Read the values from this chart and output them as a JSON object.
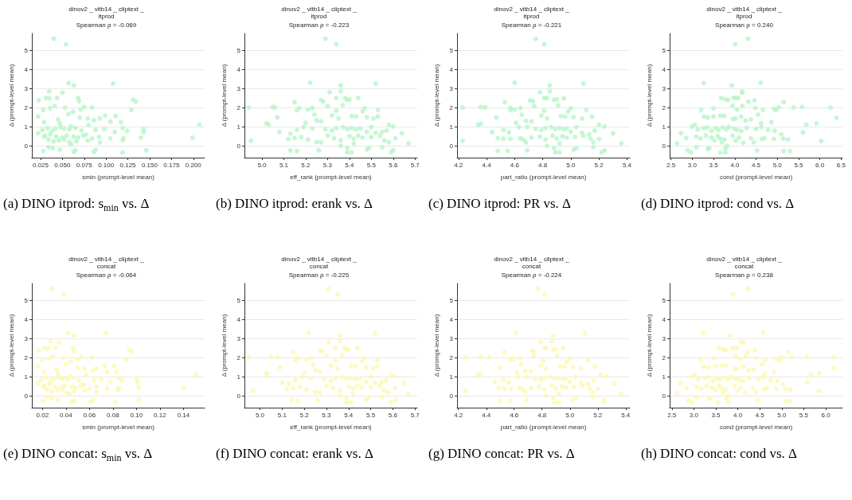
{
  "chart_data": [
    {
      "type": "scatter",
      "title": "dinov2 _ vitb14 _ cliptext _\nitprod",
      "subtitle": "Spearman ρ = -0.069",
      "xlabel": "smin (prompt-level mean)",
      "ylabel": "Δ (prompt-level mean)",
      "annotations": [
        "(a) DINO itprod: s$_{min}$ vs. Δ"
      ],
      "color": "#b8f5c8",
      "marker": "circle",
      "grid": "y",
      "xlim": [
        0.015,
        0.213
      ],
      "xticks": [
        0.025,
        {
          "value": 0.05,
          "label": "0.050"
        },
        0.075,
        {
          "value": 0.1,
          "label": "0.100"
        },
        0.125,
        {
          "value": 0.15,
          "label": "0.150"
        },
        0.175,
        {
          "value": 0.2,
          "label": "0.200"
        }
      ],
      "ylim": [
        -0.6,
        5.9
      ],
      "yticks": [
        0,
        1,
        2,
        3,
        4,
        5
      ],
      "x": [
        0.04,
        0.054,
        0.057,
        0.063,
        0.108,
        0.035,
        0.031,
        0.035,
        0.044,
        0.05,
        0.023,
        0.068,
        0.069,
        0.131,
        0.134,
        0.129,
        0.028,
        0.036,
        0.041,
        0.053,
        0.075,
        0.084,
        0.071,
        0.022,
        0.045,
        0.057,
        0.062,
        0.07,
        0.079,
        0.099,
        0.111,
        0.105,
        0.117,
        0.093,
        0.029,
        0.047,
        0.06,
        0.08,
        0.086,
        0.119,
        0.143,
        0.143,
        0.207,
        0.199,
        0.14,
        0.124,
        0.11,
        0.098,
        0.088,
        0.027,
        0.033,
        0.038,
        0.042,
        0.048,
        0.052,
        0.058,
        0.065,
        0.072,
        0.077,
        0.03,
        0.036,
        0.043,
        0.05,
        0.055,
        0.063,
        0.068,
        0.074,
        0.084,
        0.092,
        0.105,
        0.12,
        0.119,
        0.022,
        0.029,
        0.034,
        0.04,
        0.046,
        0.052,
        0.058,
        0.066,
        0.079,
        0.093,
        0.06,
        0.034,
        0.039,
        0.028,
        0.047,
        0.063,
        0.065,
        0.086,
        0.088,
        0.119,
        0.146
      ],
      "values": [
        5.62,
        5.33,
        3.3,
        3.18,
        3.28,
        2.87,
        2.52,
        2.5,
        2.52,
        2.8,
        2.4,
        2.52,
        2.35,
        2.43,
        2.33,
        1.9,
        1.88,
        1.98,
        2.1,
        2.02,
        2.05,
        2.03,
        1.92,
        1.55,
        1.4,
        1.68,
        1.8,
        1.5,
        1.45,
        1.6,
        1.58,
        1.28,
        1.25,
        1.45,
        1.25,
        1.2,
        1.05,
        1.1,
        1.35,
        0.95,
        0.9,
        0.73,
        1.13,
        0.45,
        0.45,
        0.8,
        0.75,
        0.88,
        0.85,
        0.85,
        0.95,
        0.8,
        0.9,
        1.0,
        0.92,
        0.88,
        0.95,
        0.82,
        0.6,
        0.55,
        0.62,
        0.5,
        0.45,
        0.55,
        0.5,
        0.45,
        0.55,
        0.4,
        0.48,
        0.4,
        0.42,
        0.32,
        0.68,
        0.5,
        0.35,
        0.25,
        0.3,
        0.35,
        0.2,
        0.25,
        0.3,
        0.2,
        0.1,
        -0.05,
        -0.1,
        -0.25,
        -0.18,
        -0.3,
        -0.22,
        -0.3,
        -0.2,
        -0.33,
        -0.22
      ]
    },
    {
      "type": "scatter",
      "title": "dinov2 _ vitb14 _ cliptext _\nitprod",
      "subtitle": "Spearman ρ = -0.223",
      "xlabel": "eff_rank (prompt-level mean)",
      "ylabel": "Δ (prompt-level mean)",
      "annotations": [
        "(b) DINO itprod: erank vs. Δ"
      ],
      "color": "#b8f5c8",
      "marker": "circle",
      "grid": "y",
      "xlim": [
        4.92,
        5.71
      ],
      "xticks": [
        {
          "value": 5,
          "label": "5.0"
        },
        5.1,
        5.2,
        5.3,
        5.4,
        5.5,
        5.6,
        5.7
      ],
      "ylim": [
        -0.6,
        5.9
      ],
      "yticks": [
        0,
        1,
        2,
        3,
        4,
        5
      ],
      "x": [
        5.29,
        5.34,
        5.22,
        5.52,
        5.36,
        5.31,
        5.36,
        5.27,
        5.28,
        5.34,
        5.38,
        5.39,
        5.4,
        5.44,
        5.37,
        4.94,
        5.05,
        5.06,
        5.15,
        5.17,
        5.21,
        5.23,
        5.3,
        5.34,
        5.47,
        5.53,
        5.46,
        5.07,
        5.02,
        5.03,
        5.16,
        5.2,
        5.24,
        5.25,
        5.27,
        5.32,
        5.35,
        5.41,
        5.43,
        5.48,
        5.53,
        5.51,
        5.58,
        5.6,
        5.08,
        5.13,
        5.16,
        5.19,
        5.23,
        5.29,
        5.32,
        5.34,
        5.37,
        5.39,
        5.41,
        5.43,
        5.45,
        5.48,
        5.5,
        5.52,
        5.55,
        5.57,
        5.64,
        4.95,
        5.12,
        5.15,
        5.18,
        5.21,
        5.25,
        5.27,
        5.3,
        5.33,
        5.36,
        5.4,
        5.42,
        5.44,
        5.46,
        5.5,
        5.54,
        5.56,
        5.58,
        5.61,
        5.67,
        5.36,
        5.42,
        5.13,
        5.16,
        5.26,
        5.39,
        5.39,
        5.41,
        5.48,
        5.49,
        5.55,
        5.59,
        5.6
      ],
      "values": [
        5.62,
        5.33,
        3.32,
        3.28,
        3.18,
        2.82,
        2.87,
        2.4,
        2.35,
        2.52,
        2.52,
        2.42,
        2.45,
        2.52,
        2.15,
        2.03,
        2.05,
        2.03,
        2.3,
        2.0,
        1.92,
        2.0,
        2.1,
        1.85,
        1.98,
        1.88,
        1.82,
        1.5,
        1.2,
        1.14,
        1.88,
        1.22,
        1.65,
        1.35,
        1.3,
        1.6,
        1.45,
        1.58,
        1.55,
        1.52,
        1.55,
        1.45,
        1.12,
        1.03,
        0.73,
        0.65,
        0.85,
        1.0,
        0.92,
        0.88,
        0.82,
        0.95,
        1.0,
        0.9,
        0.95,
        0.88,
        0.92,
        0.75,
        1.0,
        0.7,
        0.75,
        0.82,
        0.68,
        0.28,
        0.37,
        0.42,
        0.48,
        0.35,
        0.22,
        0.2,
        0.55,
        0.42,
        0.3,
        0.52,
        0.4,
        0.55,
        0.45,
        0.48,
        0.55,
        0.3,
        0.2,
        0.42,
        0.15,
        0.02,
        0.15,
        -0.22,
        -0.25,
        -0.22,
        -0.1,
        -0.33,
        -0.33,
        -0.18,
        -0.08,
        -0.05,
        -0.32,
        -0.22
      ]
    },
    {
      "type": "scatter",
      "title": "dinov2 _ vitb14 _ cliptext _\nitprod",
      "subtitle": "Spearman ρ = -0.221",
      "xlabel": "part_ratio (prompt-level mean)",
      "ylabel": "Δ (prompt-level mean)",
      "annotations": [
        "(c) DINO itprod: PR vs. Δ"
      ],
      "color": "#b8f5c8",
      "marker": "circle",
      "grid": "y",
      "xlim": [
        4.19,
        5.42
      ],
      "xticks": [
        4.2,
        4.4,
        4.6,
        4.8,
        {
          "value": 5,
          "label": "5.0"
        },
        5.2,
        5.4
      ],
      "ylim": [
        -0.6,
        5.9
      ],
      "yticks": [
        0,
        1,
        2,
        3,
        4,
        5
      ],
      "x": [
        4.75,
        4.81,
        4.6,
        5.09,
        4.85,
        4.78,
        4.85,
        4.71,
        4.73,
        4.81,
        4.83,
        4.88,
        4.9,
        4.95,
        4.91,
        4.23,
        4.36,
        4.39,
        4.53,
        4.57,
        4.6,
        4.64,
        4.74,
        4.81,
        5.0,
        5.11,
        4.98,
        4.47,
        4.34,
        4.36,
        4.57,
        4.61,
        4.65,
        4.68,
        4.72,
        4.79,
        4.83,
        4.93,
        4.96,
        5.02,
        5.15,
        5.08,
        5.2,
        5.24,
        4.44,
        4.52,
        4.56,
        4.63,
        4.69,
        4.75,
        4.79,
        4.82,
        4.86,
        4.89,
        4.92,
        4.95,
        4.97,
        5.0,
        5.04,
        5.08,
        5.13,
        5.17,
        5.3,
        4.23,
        4.48,
        4.52,
        4.57,
        4.64,
        4.66,
        4.68,
        4.72,
        4.78,
        4.82,
        4.87,
        4.9,
        4.94,
        4.97,
        5.03,
        5.09,
        5.14,
        5.16,
        5.2,
        5.36,
        4.83,
        4.92,
        4.48,
        4.55,
        4.69,
        4.88,
        4.89,
        4.92,
        5.02,
        5.04,
        5.16,
        5.22,
        5.24
      ],
      "values": [
        5.62,
        5.33,
        3.32,
        3.28,
        3.18,
        2.82,
        2.87,
        2.4,
        2.35,
        2.52,
        2.52,
        2.42,
        2.45,
        2.5,
        2.12,
        2.03,
        2.05,
        2.03,
        2.3,
        2.0,
        1.92,
        2.0,
        2.1,
        1.85,
        1.98,
        1.88,
        1.82,
        1.5,
        1.12,
        1.18,
        1.88,
        1.22,
        1.65,
        1.32,
        1.3,
        1.6,
        1.45,
        1.58,
        1.55,
        1.52,
        1.55,
        1.45,
        1.12,
        1.03,
        0.73,
        0.85,
        0.72,
        1.0,
        1.0,
        0.9,
        0.85,
        0.95,
        1.0,
        0.9,
        0.95,
        0.88,
        0.92,
        0.75,
        1.0,
        0.7,
        0.62,
        0.82,
        0.68,
        0.28,
        0.42,
        0.4,
        0.38,
        0.42,
        0.35,
        0.2,
        0.45,
        0.5,
        0.35,
        0.55,
        0.4,
        0.52,
        0.45,
        0.48,
        0.55,
        0.4,
        0.2,
        0.38,
        0.15,
        0.02,
        0.15,
        -0.25,
        -0.25,
        -0.22,
        -0.1,
        -0.33,
        -0.33,
        -0.18,
        -0.1,
        -0.05,
        -0.32,
        -0.22
      ]
    },
    {
      "type": "scatter",
      "title": "dinov2 _ vitb14 _ cliptext _\nitprod",
      "subtitle": "Spearman ρ = 0.240",
      "xlabel": "cond (prompt-level mean)",
      "ylabel": "Δ (prompt-level mean)",
      "annotations": [
        "(d) DINO itprod: cond vs. Δ"
      ],
      "color": "#b8f5c8",
      "marker": "circle",
      "grid": "y",
      "xlim": [
        2.47,
        6.53
      ],
      "xticks": [
        2.5,
        {
          "value": 3,
          "label": "3.0"
        },
        3.5,
        {
          "value": 4,
          "label": "4.0"
        },
        4.5,
        {
          "value": 5,
          "label": "5.0"
        },
        5.5,
        {
          "value": 6,
          "label": "6.0"
        },
        6.5
      ],
      "ylim": [
        -0.6,
        5.9
      ],
      "yticks": [
        0,
        1,
        2,
        3,
        4,
        5
      ],
      "x": [
        4.31,
        4.01,
        3.27,
        4.61,
        3.93,
        4.17,
        4.18,
        3.68,
        3.78,
        3.84,
        3.97,
        4.03,
        4.08,
        4.32,
        4.46,
        5.15,
        3.21,
        3.5,
        3.95,
        4.05,
        4.18,
        4.48,
        4.66,
        4.92,
        4.97,
        5.03,
        5.38,
        5.58,
        6.25,
        6.39,
        3.28,
        3.37,
        3.5,
        3.66,
        3.75,
        3.96,
        4.02,
        4.15,
        4.25,
        4.38,
        4.55,
        4.62,
        4.86,
        5.68,
        5.92,
        2.99,
        3.06,
        3.13,
        3.26,
        3.35,
        3.45,
        3.55,
        3.62,
        3.72,
        3.8,
        3.86,
        3.98,
        4.05,
        4.15,
        4.28,
        4.5,
        4.62,
        4.78,
        4.94,
        5.09,
        5.6,
        2.74,
        2.86,
        3.1,
        3.2,
        3.32,
        3.45,
        3.52,
        3.6,
        3.66,
        3.7,
        3.76,
        3.95,
        4.02,
        4.1,
        4.2,
        4.38,
        4.45,
        4.64,
        4.7,
        4.92,
        5.14,
        5.25,
        6.03,
        2.64,
        3.1,
        3.37,
        3.4,
        3.82,
        3.78,
        2.89,
        2.97,
        3.66,
        3.78,
        4.52,
        5.15,
        5.3
      ],
      "values": [
        5.62,
        5.33,
        3.3,
        3.32,
        3.18,
        2.85,
        2.8,
        2.52,
        2.45,
        2.42,
        2.53,
        2.53,
        2.52,
        2.33,
        2.4,
        2.3,
        1.88,
        1.98,
        2.12,
        1.92,
        2.1,
        2.0,
        1.9,
        1.95,
        1.88,
        2.03,
        2.03,
        2.05,
        2.03,
        1.48,
        1.55,
        1.5,
        1.55,
        1.6,
        1.58,
        1.42,
        1.45,
        1.55,
        1.35,
        1.4,
        1.65,
        1.2,
        1.25,
        1.12,
        1.2,
        1.02,
        1.12,
        0.88,
        0.95,
        0.98,
        0.8,
        0.95,
        0.85,
        0.98,
        0.88,
        1.0,
        0.92,
        0.85,
        0.8,
        0.95,
        0.9,
        1.0,
        0.85,
        0.8,
        0.62,
        0.72,
        0.68,
        0.42,
        0.5,
        0.4,
        0.55,
        0.45,
        0.3,
        0.52,
        0.4,
        0.2,
        0.35,
        0.55,
        0.3,
        0.45,
        0.18,
        0.42,
        0.2,
        0.38,
        0.42,
        0.38,
        0.4,
        0.35,
        0.27,
        0.15,
        -0.05,
        -0.15,
        -0.1,
        0.02,
        -0.12,
        -0.22,
        -0.32,
        -0.33,
        -0.33,
        -0.23,
        -0.25,
        -0.25
      ]
    },
    {
      "type": "scatter",
      "title": "dinov2 _ vitb14 _ cliptext _\nconcat",
      "subtitle": "Spearman ρ = -0.064",
      "xlabel": "smin (prompt-level mean)",
      "ylabel": "Δ (prompt-level mean)",
      "annotations": [
        "(e) DINO concat: s$_{min}$ vs. Δ"
      ],
      "color": "#fdf8b4",
      "marker": "circle",
      "grid": "y",
      "xlim": [
        0.011,
        0.158
      ],
      "xticks": [
        0.02,
        0.04,
        0.06,
        0.08,
        {
          "value": 0.1,
          "label": "0.10"
        },
        0.12,
        0.14
      ],
      "ylim": [
        -0.6,
        5.9
      ],
      "yticks": [
        0,
        1,
        2,
        3,
        4,
        5
      ],
      "x": [
        0.028,
        0.038,
        0.042,
        0.047,
        0.074,
        0.027,
        0.022,
        0.025,
        0.031,
        0.034,
        0.017,
        0.046,
        0.047,
        0.094,
        0.096,
        0.091,
        0.02,
        0.026,
        0.029,
        0.038,
        0.053,
        0.062,
        0.05,
        0.016,
        0.032,
        0.04,
        0.044,
        0.05,
        0.056,
        0.073,
        0.081,
        0.075,
        0.083,
        0.066,
        0.021,
        0.033,
        0.043,
        0.057,
        0.063,
        0.085,
        0.1,
        0.101,
        0.151,
        0.14,
        0.102,
        0.088,
        0.078,
        0.07,
        0.064,
        0.019,
        0.023,
        0.027,
        0.03,
        0.034,
        0.037,
        0.041,
        0.046,
        0.051,
        0.055,
        0.021,
        0.026,
        0.031,
        0.036,
        0.039,
        0.045,
        0.048,
        0.053,
        0.06,
        0.066,
        0.075,
        0.085,
        0.084,
        0.016,
        0.021,
        0.024,
        0.028,
        0.033,
        0.037,
        0.041,
        0.047,
        0.056,
        0.066,
        0.043,
        0.024,
        0.028,
        0.02,
        0.033,
        0.045,
        0.047,
        0.061,
        0.063,
        0.082,
        0.102
      ],
      "values": [
        5.62,
        5.33,
        3.3,
        3.18,
        3.28,
        2.87,
        2.52,
        2.5,
        2.52,
        2.8,
        2.4,
        2.52,
        2.35,
        2.43,
        2.33,
        1.9,
        1.88,
        1.98,
        2.1,
        2.02,
        2.05,
        2.03,
        1.92,
        1.55,
        1.4,
        1.68,
        1.8,
        1.5,
        1.45,
        1.6,
        1.58,
        1.28,
        1.25,
        1.45,
        1.25,
        1.2,
        1.05,
        1.1,
        1.35,
        0.95,
        0.9,
        0.73,
        1.13,
        0.45,
        0.45,
        0.8,
        0.75,
        0.88,
        0.85,
        0.85,
        0.95,
        0.8,
        0.9,
        1.0,
        0.92,
        0.88,
        0.95,
        0.82,
        0.6,
        0.55,
        0.62,
        0.5,
        0.45,
        0.55,
        0.5,
        0.45,
        0.55,
        0.4,
        0.48,
        0.4,
        0.42,
        0.32,
        0.68,
        0.5,
        0.35,
        0.25,
        0.3,
        0.35,
        0.2,
        0.25,
        0.3,
        0.2,
        0.1,
        -0.05,
        -0.1,
        -0.25,
        -0.18,
        -0.3,
        -0.22,
        -0.3,
        -0.2,
        -0.33,
        -0.22
      ]
    },
    {
      "type": "scatter",
      "title": "dinov2 _ vitb14 _ cliptext _\nconcat",
      "subtitle": "Spearman ρ = -0.225",
      "xlabel": "eff_rank (prompt-level mean)",
      "ylabel": "Δ (prompt-level mean)",
      "annotations": [
        "(f) DINO concat: erank vs. Δ"
      ],
      "color": "#fdf8b4",
      "marker": "circle",
      "grid": "y",
      "xlim": [
        4.93,
        5.71
      ],
      "xticks": [
        {
          "value": 5,
          "label": "5.0"
        },
        5.1,
        5.2,
        5.3,
        5.4,
        5.5,
        5.6,
        5.7
      ],
      "ylim": [
        -0.6,
        5.9
      ],
      "yticks": [
        0,
        1,
        2,
        3,
        4,
        5
      ],
      "x": [
        5.31,
        5.35,
        5.22,
        5.52,
        5.36,
        5.31,
        5.36,
        5.27,
        5.28,
        5.34,
        5.38,
        5.39,
        5.4,
        5.44,
        5.37,
        4.95,
        5.05,
        5.08,
        5.15,
        5.17,
        5.21,
        5.23,
        5.3,
        5.34,
        5.47,
        5.53,
        5.46,
        5.09,
        5.03,
        5.03,
        5.16,
        5.2,
        5.24,
        5.25,
        5.27,
        5.32,
        5.35,
        5.41,
        5.43,
        5.48,
        5.53,
        5.51,
        5.59,
        5.61,
        5.1,
        5.13,
        5.16,
        5.19,
        5.23,
        5.29,
        5.32,
        5.34,
        5.37,
        5.39,
        5.41,
        5.43,
        5.45,
        5.48,
        5.5,
        5.52,
        5.55,
        5.57,
        5.65,
        4.97,
        5.12,
        5.15,
        5.18,
        5.21,
        5.25,
        5.27,
        5.3,
        5.33,
        5.36,
        5.4,
        5.42,
        5.44,
        5.46,
        5.5,
        5.54,
        5.56,
        5.58,
        5.61,
        5.67,
        5.36,
        5.42,
        5.14,
        5.17,
        5.26,
        5.39,
        5.39,
        5.41,
        5.48,
        5.49,
        5.55,
        5.59,
        5.61
      ],
      "values": [
        5.62,
        5.33,
        3.32,
        3.28,
        3.18,
        2.82,
        2.87,
        2.4,
        2.35,
        2.52,
        2.52,
        2.42,
        2.45,
        2.52,
        2.15,
        2.03,
        2.05,
        2.03,
        2.3,
        2.0,
        1.92,
        2.0,
        2.1,
        1.85,
        1.98,
        1.88,
        1.82,
        1.5,
        1.2,
        1.14,
        1.88,
        1.22,
        1.65,
        1.35,
        1.3,
        1.6,
        1.45,
        1.58,
        1.55,
        1.52,
        1.55,
        1.45,
        1.12,
        1.03,
        0.73,
        0.65,
        0.85,
        1.0,
        0.92,
        0.88,
        0.82,
        0.95,
        1.0,
        0.9,
        0.95,
        0.88,
        0.92,
        0.75,
        1.0,
        0.7,
        0.75,
        0.82,
        0.68,
        0.28,
        0.37,
        0.42,
        0.48,
        0.35,
        0.22,
        0.2,
        0.55,
        0.42,
        0.3,
        0.52,
        0.4,
        0.55,
        0.45,
        0.48,
        0.55,
        0.3,
        0.2,
        0.42,
        0.15,
        0.02,
        0.15,
        -0.22,
        -0.25,
        -0.22,
        -0.1,
        -0.33,
        -0.33,
        -0.18,
        -0.08,
        -0.05,
        -0.32,
        -0.22
      ]
    },
    {
      "type": "scatter",
      "title": "dinov2 _ vitb14 _ cliptext _\nconcat",
      "subtitle": "Spearman ρ = -0.224",
      "xlabel": "part_ratio (prompt-level mean)",
      "ylabel": "Δ (prompt-level mean)",
      "annotations": [
        "(g) DINO concat: PR vs. Δ"
      ],
      "color": "#fdf8b4",
      "marker": "circle",
      "grid": "y",
      "xlim": [
        4.19,
        5.43
      ],
      "xticks": [
        4.2,
        4.4,
        4.6,
        4.8,
        {
          "value": 5,
          "label": "5.0"
        },
        5.2,
        5.4
      ],
      "ylim": [
        -0.6,
        5.9
      ],
      "yticks": [
        0,
        1,
        2,
        3,
        4,
        5
      ],
      "x": [
        4.77,
        4.82,
        4.61,
        5.11,
        4.88,
        4.79,
        4.87,
        4.73,
        4.74,
        4.82,
        4.83,
        4.88,
        4.9,
        4.95,
        4.91,
        4.25,
        4.36,
        4.42,
        4.53,
        4.58,
        4.6,
        4.64,
        4.74,
        4.81,
        5.0,
        5.13,
        4.98,
        4.5,
        4.34,
        4.36,
        4.57,
        4.62,
        4.65,
        4.68,
        4.72,
        4.79,
        4.83,
        4.93,
        4.96,
        5.02,
        5.18,
        5.08,
        5.22,
        5.26,
        4.46,
        4.52,
        4.56,
        4.63,
        4.69,
        4.75,
        4.79,
        4.82,
        4.86,
        4.89,
        4.92,
        4.95,
        4.97,
        5.0,
        5.04,
        5.08,
        5.13,
        5.17,
        5.32,
        4.25,
        4.49,
        4.53,
        4.58,
        4.64,
        4.66,
        4.68,
        4.72,
        4.78,
        4.82,
        4.87,
        4.9,
        4.94,
        4.97,
        5.03,
        5.09,
        5.14,
        5.16,
        5.2,
        5.37,
        4.83,
        4.92,
        4.5,
        4.57,
        4.69,
        4.88,
        4.89,
        4.92,
        5.02,
        5.04,
        5.17,
        5.24,
        5.25
      ],
      "values": [
        5.62,
        5.33,
        3.32,
        3.28,
        3.18,
        2.82,
        2.87,
        2.4,
        2.35,
        2.52,
        2.52,
        2.42,
        2.45,
        2.5,
        2.12,
        2.03,
        2.05,
        2.03,
        2.3,
        2.0,
        1.92,
        2.0,
        2.1,
        1.85,
        1.98,
        1.88,
        1.82,
        1.5,
        1.12,
        1.18,
        1.88,
        1.22,
        1.65,
        1.32,
        1.3,
        1.6,
        1.45,
        1.58,
        1.55,
        1.52,
        1.55,
        1.45,
        1.12,
        1.03,
        0.73,
        0.85,
        0.72,
        1.0,
        1.0,
        0.9,
        0.85,
        0.95,
        1.0,
        0.9,
        0.95,
        0.88,
        0.92,
        0.75,
        1.0,
        0.7,
        0.62,
        0.82,
        0.68,
        0.28,
        0.42,
        0.4,
        0.38,
        0.42,
        0.35,
        0.2,
        0.45,
        0.5,
        0.35,
        0.55,
        0.4,
        0.52,
        0.45,
        0.48,
        0.55,
        0.4,
        0.2,
        0.38,
        0.15,
        0.02,
        0.15,
        -0.25,
        -0.25,
        -0.22,
        -0.1,
        -0.33,
        -0.33,
        -0.18,
        -0.1,
        -0.05,
        -0.32,
        -0.22
      ]
    },
    {
      "type": "scatter",
      "title": "dinov2 _ vitb14 _ cliptext _\nconcat",
      "subtitle": "Spearman ρ = 0.238",
      "xlabel": "cond (prompt-level mean)",
      "ylabel": "Δ (prompt-level mean)",
      "annotations": [
        "(h) DINO concat: cond vs. Δ"
      ],
      "color": "#fdf8b4",
      "marker": "circle",
      "grid": "y",
      "xlim": [
        2.45,
        6.38
      ],
      "xticks": [
        2.5,
        {
          "value": 3,
          "label": "3.0"
        },
        3.5,
        {
          "value": 4,
          "label": "4.0"
        },
        4.5,
        {
          "value": 5,
          "label": "5.0"
        },
        5.5,
        {
          "value": 6,
          "label": "6.0"
        }
      ],
      "ylim": [
        -0.6,
        5.9
      ],
      "yticks": [
        0,
        1,
        2,
        3,
        4,
        5
      ],
      "x": [
        4.23,
        3.89,
        3.22,
        4.58,
        3.83,
        4.07,
        4.13,
        3.58,
        3.68,
        3.74,
        3.87,
        3.93,
        3.98,
        4.22,
        4.38,
        5.15,
        3.16,
        3.45,
        3.95,
        4.05,
        4.18,
        4.42,
        4.62,
        4.86,
        4.95,
        4.99,
        5.23,
        5.57,
        6.19,
        6.2,
        3.23,
        3.34,
        3.5,
        3.63,
        3.72,
        3.93,
        3.98,
        4.12,
        4.24,
        4.35,
        4.55,
        4.62,
        4.82,
        5.66,
        5.85,
        2.96,
        3.01,
        3.1,
        3.23,
        3.33,
        3.43,
        3.52,
        3.6,
        3.7,
        3.78,
        3.84,
        3.95,
        4.03,
        4.12,
        4.26,
        4.47,
        4.58,
        4.75,
        4.9,
        5.03,
        5.58,
        2.7,
        2.83,
        3.06,
        3.17,
        3.29,
        3.42,
        3.49,
        3.57,
        3.63,
        3.67,
        3.73,
        3.92,
        3.99,
        4.07,
        4.17,
        4.34,
        4.42,
        4.6,
        4.66,
        4.88,
        5.08,
        5.19,
        5.84,
        2.62,
        3.07,
        3.35,
        3.37,
        3.79,
        3.74,
        2.88,
        2.95,
        3.55,
        3.79,
        4.45,
        5.08,
        5.18
      ],
      "values": [
        5.62,
        5.33,
        3.3,
        3.32,
        3.18,
        2.85,
        2.8,
        2.52,
        2.45,
        2.42,
        2.53,
        2.53,
        2.52,
        2.33,
        2.4,
        2.3,
        1.88,
        1.98,
        2.12,
        1.92,
        2.1,
        2.0,
        1.9,
        1.95,
        1.88,
        2.03,
        2.03,
        2.05,
        2.03,
        1.48,
        1.55,
        1.5,
        1.55,
        1.6,
        1.58,
        1.42,
        1.45,
        1.55,
        1.35,
        1.4,
        1.65,
        1.2,
        1.25,
        1.12,
        1.2,
        1.02,
        1.12,
        0.88,
        0.95,
        0.98,
        0.8,
        0.95,
        0.85,
        0.98,
        0.88,
        1.0,
        0.92,
        0.85,
        0.8,
        0.95,
        0.9,
        1.0,
        0.85,
        0.8,
        0.62,
        0.72,
        0.68,
        0.42,
        0.5,
        0.4,
        0.55,
        0.45,
        0.3,
        0.52,
        0.4,
        0.2,
        0.35,
        0.55,
        0.3,
        0.45,
        0.18,
        0.42,
        0.2,
        0.38,
        0.42,
        0.38,
        0.4,
        0.35,
        0.27,
        0.15,
        -0.05,
        -0.15,
        -0.1,
        0.02,
        -0.12,
        -0.22,
        -0.32,
        -0.33,
        -0.33,
        -0.23,
        -0.25,
        -0.25
      ]
    }
  ]
}
